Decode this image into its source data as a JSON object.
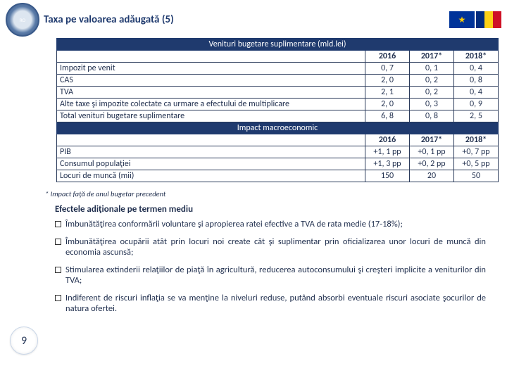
{
  "title": "Taxa pe valoarea adăugată (5)",
  "pageNumber": "9",
  "footnote": "* Impact faţă de anul bugetar precedent",
  "effectsTitle": "Efectele adiţionale pe termen mediu",
  "section1": {
    "header": "Venituri bugetare suplimentare (mld.lei)",
    "years": [
      "2016",
      "2017*",
      "2018*"
    ],
    "rows": [
      {
        "label": "Impozit pe venit",
        "v": [
          "0, 7",
          "0, 1",
          "0, 4"
        ]
      },
      {
        "label": "CAS",
        "v": [
          "2, 0",
          "0, 2",
          "0, 8"
        ]
      },
      {
        "label": "TVA",
        "v": [
          "2, 1",
          "0, 2",
          "0, 4"
        ]
      },
      {
        "label": "Alte taxe şi impozite colectate ca urmare a efectului de multiplicare",
        "v": [
          "2, 0",
          "0, 3",
          "0, 9"
        ]
      },
      {
        "label": "Total venituri bugetare suplimentare",
        "v": [
          "6, 8",
          "0, 8",
          "2, 5"
        ]
      }
    ]
  },
  "section2": {
    "header": "Impact macroeconomic",
    "years": [
      "2016",
      "2017*",
      "2018*"
    ],
    "rows": [
      {
        "label": "PIB",
        "v": [
          "+1, 1 pp",
          "+0, 1 pp",
          "+0, 7 pp"
        ]
      },
      {
        "label": "Consumul populaţiei",
        "v": [
          "+1, 3 pp",
          "+0, 2 pp",
          "+0, 5 pp"
        ]
      },
      {
        "label": "Locuri de muncă (mii)",
        "v": [
          "150",
          "20",
          "50"
        ]
      }
    ]
  },
  "bullets": [
    "Îmbunătăţirea conformării voluntare şi apropierea ratei efective a TVA de rata medie (17-18%);",
    "Îmbunătăţirea ocupării atât prin locuri noi create cât şi suplimentar prin oficializarea unor locuri de muncă din economia ascunsă;",
    "Stimularea extinderii relaţiilor de piaţă în agricultură, reducerea autoconsumului şi creşteri implicite a veniturilor din TVA;",
    "Indiferent de riscuri inflaţia se va menţine la niveluri reduse, putând absorbi eventuale riscuri asociate şocurilor de natura ofertei."
  ]
}
